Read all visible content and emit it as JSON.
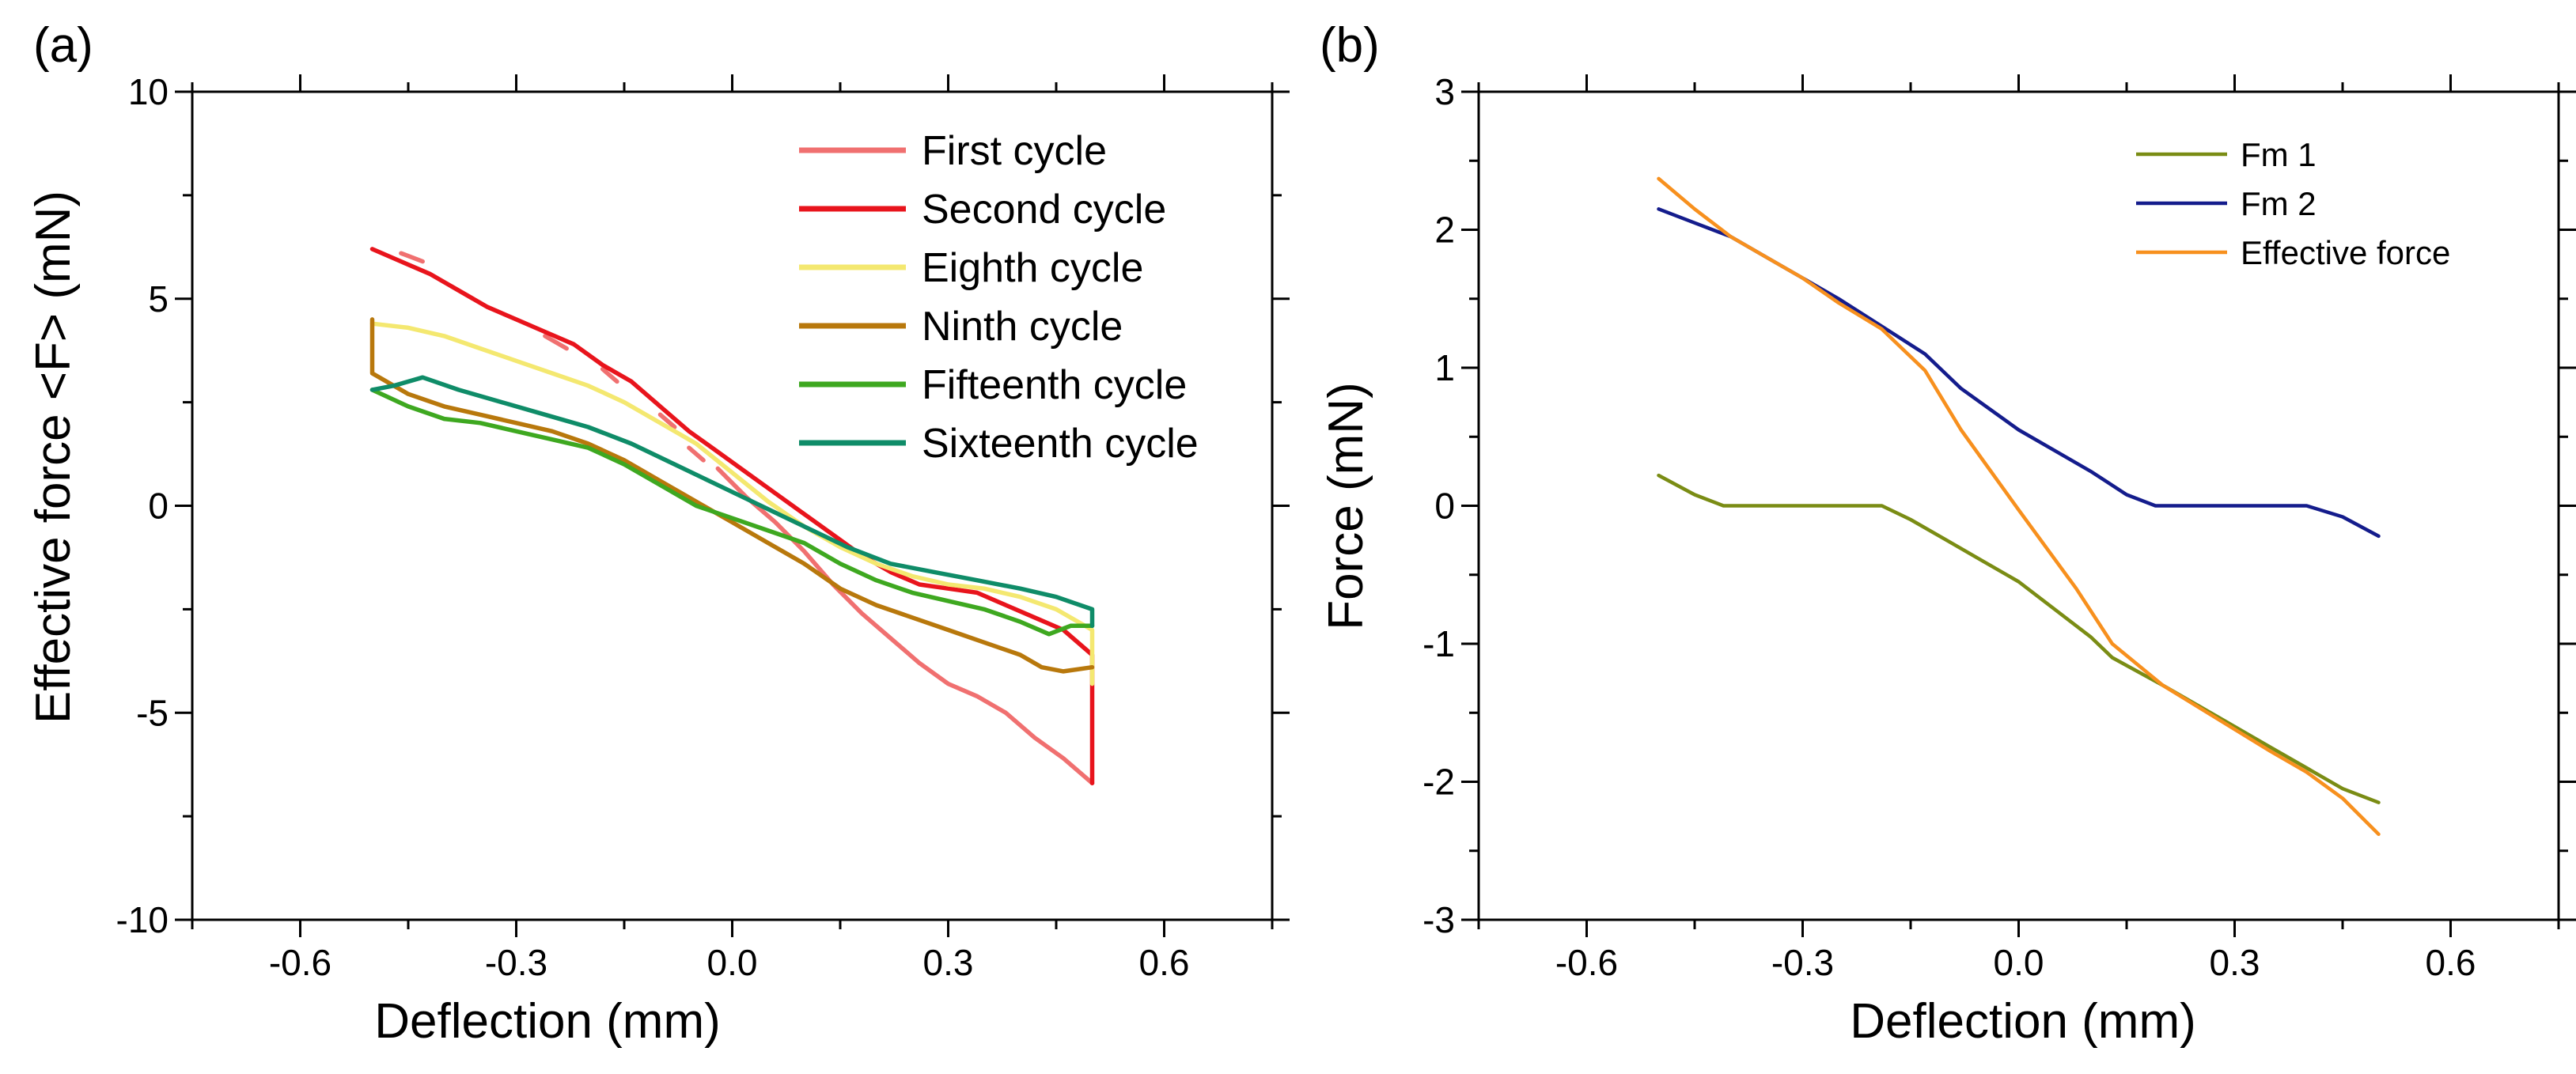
{
  "chart_data": [
    {
      "panel_label": "(a)",
      "type": "line",
      "title": "",
      "xlabel": "Deflection (mm)",
      "ylabel": "Effective force <F> (mN)",
      "xlim": [
        -0.75,
        0.75
      ],
      "ylim": [
        -10,
        10
      ],
      "xticks": [
        -0.6,
        -0.3,
        0.0,
        0.3,
        0.6
      ],
      "xtick_labels": [
        "-0.6",
        "-0.3",
        "0.0",
        "0.3",
        "0.6"
      ],
      "yticks": [
        -10,
        -5,
        0,
        5,
        10
      ],
      "ytick_labels": [
        "-10",
        "-5",
        "0",
        "5",
        "10"
      ],
      "grid": false,
      "legend_position": "top-right",
      "series": [
        {
          "name": "First cycle",
          "color": "#f07070",
          "dashed_segments": [
            [
              [
                -0.46,
                6.1
              ],
              [
                -0.43,
                5.9
              ]
            ],
            [
              [
                -0.39,
                5.3
              ],
              [
                -0.36,
                5.0
              ]
            ],
            [
              [
                -0.26,
                4.1
              ],
              [
                -0.23,
                3.8
              ]
            ],
            [
              [
                -0.18,
                3.3
              ],
              [
                -0.16,
                3.0
              ]
            ],
            [
              [
                -0.1,
                2.2
              ],
              [
                -0.08,
                1.9
              ]
            ],
            [
              [
                -0.06,
                1.4
              ],
              [
                -0.04,
                1.1
              ]
            ]
          ],
          "points": [
            [
              -0.02,
              0.9
            ],
            [
              0.02,
              0.2
            ],
            [
              0.06,
              -0.4
            ],
            [
              0.1,
              -1.1
            ],
            [
              0.14,
              -1.9
            ],
            [
              0.18,
              -2.6
            ],
            [
              0.22,
              -3.2
            ],
            [
              0.26,
              -3.8
            ],
            [
              0.3,
              -4.3
            ],
            [
              0.34,
              -4.6
            ],
            [
              0.38,
              -5.0
            ],
            [
              0.42,
              -5.6
            ],
            [
              0.46,
              -6.1
            ],
            [
              0.5,
              -6.7
            ]
          ]
        },
        {
          "name": "Second cycle",
          "color": "#e8141c",
          "points": [
            [
              -0.5,
              6.2
            ],
            [
              -0.46,
              5.9
            ],
            [
              -0.42,
              5.6
            ],
            [
              -0.38,
              5.2
            ],
            [
              -0.34,
              4.8
            ],
            [
              -0.3,
              4.5
            ],
            [
              -0.26,
              4.2
            ],
            [
              -0.22,
              3.9
            ],
            [
              -0.18,
              3.4
            ],
            [
              -0.14,
              3.0
            ],
            [
              -0.1,
              2.4
            ],
            [
              -0.06,
              1.8
            ],
            [
              -0.02,
              1.3
            ],
            [
              0.02,
              0.8
            ],
            [
              0.06,
              0.3
            ],
            [
              0.1,
              -0.2
            ],
            [
              0.14,
              -0.7
            ],
            [
              0.18,
              -1.2
            ],
            [
              0.22,
              -1.6
            ],
            [
              0.26,
              -1.9
            ],
            [
              0.3,
              -2.0
            ],
            [
              0.34,
              -2.1
            ],
            [
              0.38,
              -2.4
            ],
            [
              0.42,
              -2.7
            ],
            [
              0.46,
              -3.0
            ],
            [
              0.5,
              -3.6
            ],
            [
              0.5,
              -6.7
            ],
            [
              0.5,
              -4.5
            ]
          ]
        },
        {
          "name": "Eighth cycle",
          "color": "#f4e870",
          "points": [
            [
              -0.5,
              4.4
            ],
            [
              -0.45,
              4.3
            ],
            [
              -0.4,
              4.1
            ],
            [
              -0.35,
              3.8
            ],
            [
              -0.3,
              3.5
            ],
            [
              -0.25,
              3.2
            ],
            [
              -0.2,
              2.9
            ],
            [
              -0.15,
              2.5
            ],
            [
              -0.1,
              2.0
            ],
            [
              -0.05,
              1.5
            ],
            [
              0.0,
              0.8
            ],
            [
              0.05,
              0.1
            ],
            [
              0.1,
              -0.5
            ],
            [
              0.15,
              -1.0
            ],
            [
              0.2,
              -1.4
            ],
            [
              0.25,
              -1.7
            ],
            [
              0.3,
              -1.9
            ],
            [
              0.35,
              -2.0
            ],
            [
              0.4,
              -2.2
            ],
            [
              0.45,
              -2.5
            ],
            [
              0.5,
              -3.0
            ],
            [
              0.5,
              -4.3
            ]
          ]
        },
        {
          "name": "Ninth cycle",
          "color": "#b8780c",
          "points": [
            [
              -0.5,
              4.5
            ],
            [
              -0.5,
              3.2
            ],
            [
              -0.45,
              2.7
            ],
            [
              -0.4,
              2.4
            ],
            [
              -0.35,
              2.2
            ],
            [
              -0.3,
              2.0
            ],
            [
              -0.25,
              1.8
            ],
            [
              -0.2,
              1.5
            ],
            [
              -0.15,
              1.1
            ],
            [
              -0.1,
              0.6
            ],
            [
              -0.05,
              0.1
            ],
            [
              0.0,
              -0.4
            ],
            [
              0.05,
              -0.9
            ],
            [
              0.1,
              -1.4
            ],
            [
              0.15,
              -2.0
            ],
            [
              0.2,
              -2.4
            ],
            [
              0.25,
              -2.7
            ],
            [
              0.3,
              -3.0
            ],
            [
              0.35,
              -3.3
            ],
            [
              0.4,
              -3.6
            ],
            [
              0.43,
              -3.9
            ],
            [
              0.46,
              -4.0
            ],
            [
              0.5,
              -3.9
            ]
          ]
        },
        {
          "name": "Fifteenth cycle",
          "color": "#3ea820",
          "points": [
            [
              -0.5,
              2.8
            ],
            [
              -0.45,
              2.4
            ],
            [
              -0.4,
              2.1
            ],
            [
              -0.35,
              2.0
            ],
            [
              -0.3,
              1.8
            ],
            [
              -0.25,
              1.6
            ],
            [
              -0.2,
              1.4
            ],
            [
              -0.15,
              1.0
            ],
            [
              -0.1,
              0.5
            ],
            [
              -0.05,
              0.0
            ],
            [
              0.0,
              -0.3
            ],
            [
              0.05,
              -0.6
            ],
            [
              0.1,
              -0.9
            ],
            [
              0.15,
              -1.4
            ],
            [
              0.2,
              -1.8
            ],
            [
              0.25,
              -2.1
            ],
            [
              0.3,
              -2.3
            ],
            [
              0.35,
              -2.5
            ],
            [
              0.4,
              -2.8
            ],
            [
              0.44,
              -3.1
            ],
            [
              0.47,
              -2.9
            ],
            [
              0.5,
              -2.9
            ]
          ]
        },
        {
          "name": "Sixteenth cycle",
          "color": "#0f8c68",
          "points": [
            [
              -0.5,
              2.8
            ],
            [
              -0.47,
              2.9
            ],
            [
              -0.43,
              3.1
            ],
            [
              -0.38,
              2.8
            ],
            [
              -0.32,
              2.5
            ],
            [
              -0.26,
              2.2
            ],
            [
              -0.2,
              1.9
            ],
            [
              -0.14,
              1.5
            ],
            [
              -0.08,
              1.0
            ],
            [
              -0.02,
              0.5
            ],
            [
              0.04,
              0.0
            ],
            [
              0.1,
              -0.5
            ],
            [
              0.16,
              -1.0
            ],
            [
              0.22,
              -1.4
            ],
            [
              0.28,
              -1.6
            ],
            [
              0.34,
              -1.8
            ],
            [
              0.4,
              -2.0
            ],
            [
              0.45,
              -2.2
            ],
            [
              0.5,
              -2.5
            ],
            [
              0.5,
              -2.9
            ]
          ]
        }
      ]
    },
    {
      "panel_label": "(b)",
      "type": "line",
      "title": "",
      "xlabel": "Deflection (mm)",
      "ylabel": "Force (mN)",
      "xlim": [
        -0.75,
        0.75
      ],
      "ylim": [
        -3,
        3
      ],
      "xticks": [
        -0.6,
        -0.3,
        0.0,
        0.3,
        0.6
      ],
      "xtick_labels": [
        "-0.6",
        "-0.3",
        "0.0",
        "0.3",
        "0.6"
      ],
      "yticks": [
        -3,
        -2,
        -1,
        0,
        1,
        2,
        3
      ],
      "ytick_labels": [
        "-3",
        "-2",
        "-1",
        "0",
        "1",
        "2",
        "3"
      ],
      "grid": false,
      "legend_position": "top-right",
      "series": [
        {
          "name": "Fm 1",
          "color": "#7a8c14",
          "points": [
            [
              -0.5,
              0.22
            ],
            [
              -0.45,
              0.08
            ],
            [
              -0.41,
              0.0
            ],
            [
              -0.3,
              0.0
            ],
            [
              -0.19,
              0.0
            ],
            [
              -0.15,
              -0.1
            ],
            [
              -0.1,
              -0.25
            ],
            [
              -0.05,
              -0.4
            ],
            [
              0.0,
              -0.55
            ],
            [
              0.05,
              -0.75
            ],
            [
              0.1,
              -0.95
            ],
            [
              0.13,
              -1.1
            ],
            [
              0.2,
              -1.3
            ],
            [
              0.25,
              -1.45
            ],
            [
              0.3,
              -1.6
            ],
            [
              0.35,
              -1.75
            ],
            [
              0.4,
              -1.9
            ],
            [
              0.45,
              -2.05
            ],
            [
              0.5,
              -2.15
            ]
          ]
        },
        {
          "name": "Fm 2",
          "color": "#141c8c",
          "points": [
            [
              -0.5,
              2.15
            ],
            [
              -0.45,
              2.05
            ],
            [
              -0.4,
              1.95
            ],
            [
              -0.35,
              1.8
            ],
            [
              -0.3,
              1.65
            ],
            [
              -0.25,
              1.5
            ],
            [
              -0.19,
              1.3
            ],
            [
              -0.13,
              1.1
            ],
            [
              -0.08,
              0.85
            ],
            [
              0.0,
              0.55
            ],
            [
              0.05,
              0.4
            ],
            [
              0.1,
              0.25
            ],
            [
              0.15,
              0.08
            ],
            [
              0.19,
              0.0
            ],
            [
              0.3,
              0.0
            ],
            [
              0.4,
              0.0
            ],
            [
              0.45,
              -0.08
            ],
            [
              0.5,
              -0.22
            ]
          ]
        },
        {
          "name": "Effective force",
          "color": "#f7901e",
          "points": [
            [
              -0.5,
              2.37
            ],
            [
              -0.45,
              2.15
            ],
            [
              -0.4,
              1.95
            ],
            [
              -0.35,
              1.8
            ],
            [
              -0.3,
              1.65
            ],
            [
              -0.25,
              1.47
            ],
            [
              -0.19,
              1.28
            ],
            [
              -0.13,
              0.98
            ],
            [
              -0.08,
              0.55
            ],
            [
              0.0,
              -0.03
            ],
            [
              0.08,
              -0.6
            ],
            [
              0.13,
              -1.0
            ],
            [
              0.2,
              -1.3
            ],
            [
              0.25,
              -1.46
            ],
            [
              0.3,
              -1.62
            ],
            [
              0.35,
              -1.78
            ],
            [
              0.4,
              -1.93
            ],
            [
              0.45,
              -2.12
            ],
            [
              0.5,
              -2.38
            ]
          ]
        }
      ]
    }
  ]
}
